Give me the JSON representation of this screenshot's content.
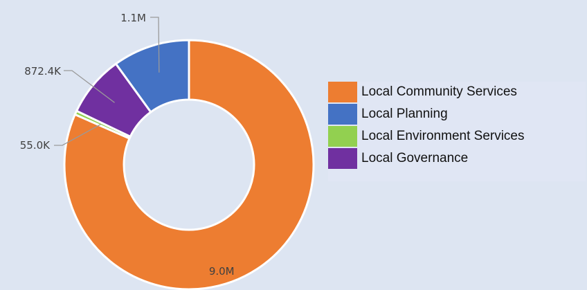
{
  "chart_data": {
    "type": "donut",
    "title": "",
    "legend_position": "right",
    "series": [
      {
        "name": "Local Community Services",
        "value": 9000000,
        "label": "9.0M",
        "color": "#ed7d31"
      },
      {
        "name": "Local Environment Services",
        "value": 55000,
        "label": "55.0K",
        "color": "#92d050"
      },
      {
        "name": "Local Governance",
        "value": 872400,
        "label": "872.4K",
        "color": "#7030a0"
      },
      {
        "name": "Local Planning",
        "value": 1100000,
        "label": "1.1M",
        "color": "#4472c4"
      }
    ],
    "legend": [
      {
        "label": "Local Community Services",
        "color": "#ed7d31"
      },
      {
        "label": "Local Planning",
        "color": "#4472c4"
      },
      {
        "label": "Local Environment Services",
        "color": "#92d050"
      },
      {
        "label": "Local Governance",
        "color": "#7030a0"
      }
    ]
  }
}
